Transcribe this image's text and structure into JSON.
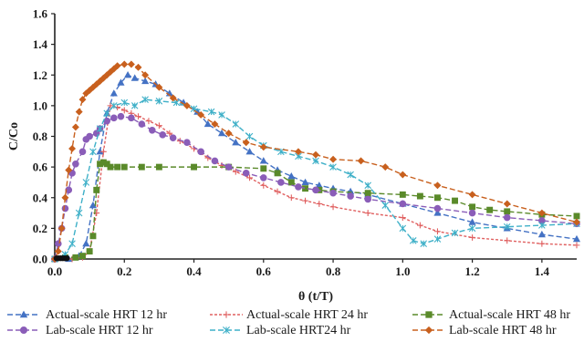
{
  "chart_data": {
    "type": "line",
    "xlabel": "θ (t/T)",
    "ylabel": "C/Co",
    "xlim": [
      0,
      1.5
    ],
    "ylim": [
      0,
      1.6
    ],
    "x_ticks": [
      "0.0",
      "0.2",
      "0.4",
      "0.6",
      "0.8",
      "1.0",
      "1.2",
      "1.4"
    ],
    "y_ticks": [
      "0.0",
      "0.2",
      "0.4",
      "0.6",
      "0.8",
      "1.0",
      "1.2",
      "1.4",
      "1.6"
    ],
    "grid": false,
    "legend_position": "bottom",
    "series": [
      {
        "name": "Actual-scale HRT 12 hr",
        "color": "#4472c4",
        "marker": "triangle",
        "dash": "6,3",
        "points": [
          [
            0.0,
            0.0
          ],
          [
            0.04,
            0.0
          ],
          [
            0.07,
            0.02
          ],
          [
            0.09,
            0.1
          ],
          [
            0.11,
            0.35
          ],
          [
            0.13,
            0.7
          ],
          [
            0.15,
            0.95
          ],
          [
            0.17,
            1.08
          ],
          [
            0.19,
            1.15
          ],
          [
            0.21,
            1.2
          ],
          [
            0.23,
            1.18
          ],
          [
            0.26,
            1.16
          ],
          [
            0.29,
            1.14
          ],
          [
            0.33,
            1.08
          ],
          [
            0.37,
            1.02
          ],
          [
            0.41,
            0.96
          ],
          [
            0.44,
            0.88
          ],
          [
            0.48,
            0.82
          ],
          [
            0.52,
            0.76
          ],
          [
            0.56,
            0.7
          ],
          [
            0.6,
            0.64
          ],
          [
            0.64,
            0.58
          ],
          [
            0.68,
            0.54
          ],
          [
            0.72,
            0.5
          ],
          [
            0.76,
            0.48
          ],
          [
            0.8,
            0.46
          ],
          [
            0.85,
            0.44
          ],
          [
            0.9,
            0.42
          ],
          [
            1.0,
            0.36
          ],
          [
            1.1,
            0.3
          ],
          [
            1.2,
            0.24
          ],
          [
            1.3,
            0.2
          ],
          [
            1.4,
            0.16
          ],
          [
            1.5,
            0.13
          ]
        ]
      },
      {
        "name": "Actual-scale HRT 24 hr",
        "color": "#e06060",
        "marker": "plus",
        "dash": "3,2",
        "points": [
          [
            0.0,
            0.0
          ],
          [
            0.05,
            0.0
          ],
          [
            0.08,
            0.01
          ],
          [
            0.1,
            0.05
          ],
          [
            0.12,
            0.3
          ],
          [
            0.14,
            0.7
          ],
          [
            0.16,
            1.0
          ],
          [
            0.18,
            0.99
          ],
          [
            0.2,
            0.97
          ],
          [
            0.22,
            0.95
          ],
          [
            0.24,
            0.93
          ],
          [
            0.27,
            0.9
          ],
          [
            0.3,
            0.87
          ],
          [
            0.33,
            0.82
          ],
          [
            0.36,
            0.77
          ],
          [
            0.4,
            0.72
          ],
          [
            0.44,
            0.66
          ],
          [
            0.48,
            0.61
          ],
          [
            0.52,
            0.57
          ],
          [
            0.56,
            0.53
          ],
          [
            0.6,
            0.48
          ],
          [
            0.64,
            0.44
          ],
          [
            0.68,
            0.4
          ],
          [
            0.72,
            0.38
          ],
          [
            0.76,
            0.36
          ],
          [
            0.8,
            0.34
          ],
          [
            0.9,
            0.3
          ],
          [
            1.0,
            0.27
          ],
          [
            1.05,
            0.22
          ],
          [
            1.1,
            0.18
          ],
          [
            1.2,
            0.14
          ],
          [
            1.3,
            0.12
          ],
          [
            1.4,
            0.1
          ],
          [
            1.5,
            0.09
          ]
        ]
      },
      {
        "name": "Actual-scale HRT 48 hr",
        "color": "#5a8a2a",
        "marker": "square",
        "dash": "6,3",
        "points": [
          [
            0.0,
            0.0
          ],
          [
            0.03,
            0.01
          ],
          [
            0.06,
            0.01
          ],
          [
            0.08,
            0.02
          ],
          [
            0.1,
            0.05
          ],
          [
            0.11,
            0.15
          ],
          [
            0.12,
            0.45
          ],
          [
            0.13,
            0.62
          ],
          [
            0.14,
            0.63
          ],
          [
            0.15,
            0.62
          ],
          [
            0.16,
            0.6
          ],
          [
            0.18,
            0.6
          ],
          [
            0.2,
            0.6
          ],
          [
            0.25,
            0.6
          ],
          [
            0.3,
            0.6
          ],
          [
            0.4,
            0.6
          ],
          [
            0.5,
            0.6
          ],
          [
            0.6,
            0.59
          ],
          [
            0.64,
            0.56
          ],
          [
            0.68,
            0.5
          ],
          [
            0.72,
            0.46
          ],
          [
            0.76,
            0.45
          ],
          [
            0.8,
            0.44
          ],
          [
            0.9,
            0.43
          ],
          [
            1.0,
            0.42
          ],
          [
            1.05,
            0.41
          ],
          [
            1.1,
            0.4
          ],
          [
            1.15,
            0.38
          ],
          [
            1.2,
            0.34
          ],
          [
            1.25,
            0.32
          ],
          [
            1.3,
            0.31
          ],
          [
            1.4,
            0.29
          ],
          [
            1.5,
            0.28
          ]
        ]
      },
      {
        "name": "Lab-scale HRT 12 hr",
        "color": "#8a5db8",
        "marker": "circle",
        "dash": "6,3",
        "points": [
          [
            0.0,
            0.0
          ],
          [
            0.01,
            0.1
          ],
          [
            0.02,
            0.2
          ],
          [
            0.03,
            0.33
          ],
          [
            0.04,
            0.45
          ],
          [
            0.05,
            0.56
          ],
          [
            0.06,
            0.62
          ],
          [
            0.08,
            0.7
          ],
          [
            0.09,
            0.78
          ],
          [
            0.1,
            0.8
          ],
          [
            0.12,
            0.82
          ],
          [
            0.13,
            0.85
          ],
          [
            0.15,
            0.9
          ],
          [
            0.17,
            0.92
          ],
          [
            0.19,
            0.93
          ],
          [
            0.22,
            0.92
          ],
          [
            0.25,
            0.88
          ],
          [
            0.28,
            0.84
          ],
          [
            0.31,
            0.81
          ],
          [
            0.34,
            0.79
          ],
          [
            0.38,
            0.76
          ],
          [
            0.42,
            0.7
          ],
          [
            0.46,
            0.64
          ],
          [
            0.5,
            0.6
          ],
          [
            0.55,
            0.56
          ],
          [
            0.6,
            0.53
          ],
          [
            0.65,
            0.5
          ],
          [
            0.7,
            0.47
          ],
          [
            0.75,
            0.45
          ],
          [
            0.8,
            0.43
          ],
          [
            0.85,
            0.41
          ],
          [
            0.9,
            0.39
          ],
          [
            1.0,
            0.36
          ],
          [
            1.1,
            0.33
          ],
          [
            1.2,
            0.3
          ],
          [
            1.3,
            0.27
          ],
          [
            1.4,
            0.25
          ],
          [
            1.5,
            0.23
          ]
        ]
      },
      {
        "name": "Lab-scale HRT24 hr",
        "color": "#3fb0c8",
        "marker": "star",
        "dash": "6,3",
        "points": [
          [
            0.0,
            0.0
          ],
          [
            0.03,
            0.03
          ],
          [
            0.05,
            0.1
          ],
          [
            0.07,
            0.3
          ],
          [
            0.09,
            0.5
          ],
          [
            0.11,
            0.7
          ],
          [
            0.13,
            0.85
          ],
          [
            0.15,
            0.95
          ],
          [
            0.17,
            1.0
          ],
          [
            0.2,
            1.02
          ],
          [
            0.23,
            1.0
          ],
          [
            0.26,
            1.04
          ],
          [
            0.3,
            1.03
          ],
          [
            0.35,
            1.02
          ],
          [
            0.4,
            0.98
          ],
          [
            0.45,
            0.96
          ],
          [
            0.48,
            0.94
          ],
          [
            0.52,
            0.88
          ],
          [
            0.56,
            0.8
          ],
          [
            0.6,
            0.74
          ],
          [
            0.65,
            0.7
          ],
          [
            0.7,
            0.67
          ],
          [
            0.75,
            0.64
          ],
          [
            0.8,
            0.6
          ],
          [
            0.85,
            0.55
          ],
          [
            0.9,
            0.48
          ],
          [
            0.95,
            0.35
          ],
          [
            1.0,
            0.2
          ],
          [
            1.03,
            0.12
          ],
          [
            1.06,
            0.1
          ],
          [
            1.1,
            0.13
          ],
          [
            1.15,
            0.17
          ],
          [
            1.2,
            0.2
          ],
          [
            1.3,
            0.21
          ],
          [
            1.4,
            0.22
          ],
          [
            1.5,
            0.23
          ]
        ]
      },
      {
        "name": "Lab-scale HRT 48 hr",
        "color": "#c8601e",
        "marker": "diamond",
        "dash": "6,3",
        "points": [
          [
            0.0,
            0.0
          ],
          [
            0.01,
            0.05
          ],
          [
            0.02,
            0.2
          ],
          [
            0.03,
            0.4
          ],
          [
            0.04,
            0.58
          ],
          [
            0.05,
            0.72
          ],
          [
            0.06,
            0.86
          ],
          [
            0.07,
            0.96
          ],
          [
            0.08,
            1.04
          ],
          [
            0.09,
            1.08
          ],
          [
            0.1,
            1.1
          ],
          [
            0.11,
            1.12
          ],
          [
            0.12,
            1.14
          ],
          [
            0.13,
            1.16
          ],
          [
            0.14,
            1.18
          ],
          [
            0.15,
            1.2
          ],
          [
            0.16,
            1.22
          ],
          [
            0.17,
            1.24
          ],
          [
            0.18,
            1.26
          ],
          [
            0.2,
            1.27
          ],
          [
            0.22,
            1.27
          ],
          [
            0.24,
            1.25
          ],
          [
            0.26,
            1.2
          ],
          [
            0.3,
            1.12
          ],
          [
            0.34,
            1.05
          ],
          [
            0.38,
            1.0
          ],
          [
            0.42,
            0.94
          ],
          [
            0.46,
            0.88
          ],
          [
            0.5,
            0.82
          ],
          [
            0.55,
            0.76
          ],
          [
            0.6,
            0.73
          ],
          [
            0.7,
            0.7
          ],
          [
            0.75,
            0.68
          ],
          [
            0.8,
            0.65
          ],
          [
            0.88,
            0.64
          ],
          [
            0.95,
            0.6
          ],
          [
            1.0,
            0.55
          ],
          [
            1.1,
            0.48
          ],
          [
            1.2,
            0.42
          ],
          [
            1.3,
            0.36
          ],
          [
            1.4,
            0.3
          ],
          [
            1.5,
            0.24
          ]
        ]
      }
    ]
  }
}
